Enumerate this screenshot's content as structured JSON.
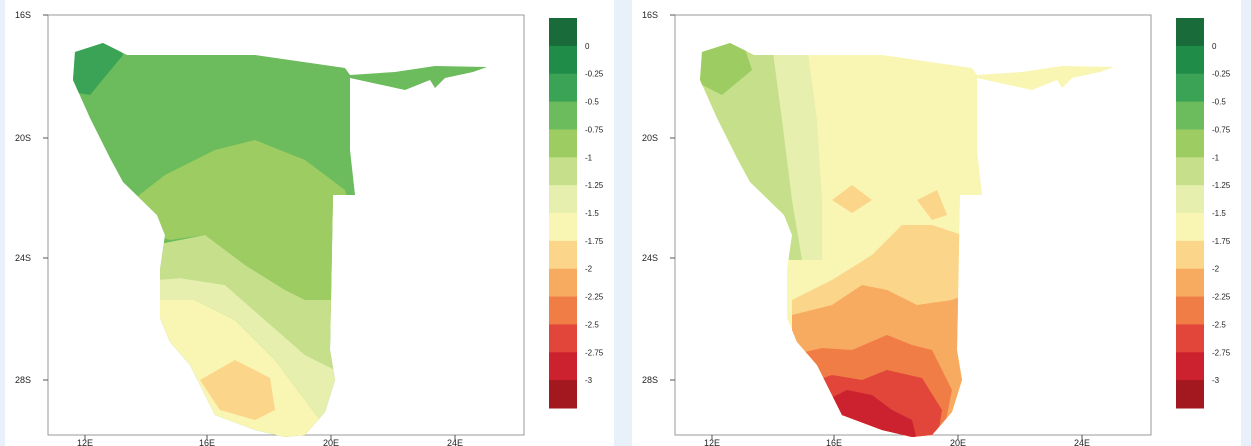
{
  "figure": {
    "panels": [
      {
        "id": "left",
        "x_ticks": [
          "12E",
          "16E",
          "20E",
          "24E"
        ],
        "y_ticks": [
          "16S",
          "20S",
          "24S",
          "28S"
        ]
      },
      {
        "id": "right",
        "x_ticks": [
          "12E",
          "16E",
          "20E",
          "24E"
        ],
        "y_ticks": [
          "16S",
          "20S",
          "24S",
          "28S"
        ]
      }
    ],
    "colorbar": {
      "labels": [
        "0",
        "-0.25",
        "-0.5",
        "-0.75",
        "-1",
        "-1.25",
        "-1.5",
        "-1.75",
        "-2",
        "-2.25",
        "-2.5",
        "-2.75",
        "-3"
      ],
      "colors": [
        "#1a6b3a",
        "#1f8c47",
        "#3aa356",
        "#6cbb5c",
        "#9ccc62",
        "#c6df8a",
        "#e6efae",
        "#f9f5b3",
        "#fbd589",
        "#f7ab61",
        "#f07d46",
        "#e2453a",
        "#cc2230",
        "#a3171f"
      ]
    },
    "colors": {
      "background": "#e8f1fa",
      "plot_frame": "#999999"
    }
  }
}
